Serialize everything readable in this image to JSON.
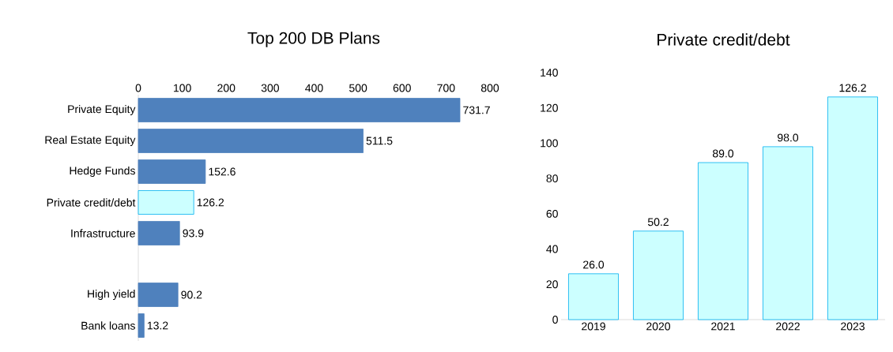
{
  "chart_data": [
    {
      "type": "bar",
      "orientation": "horizontal",
      "title": "Top 200 DB Plans",
      "categories": [
        "Private Equity",
        "Real Estate Equity",
        "Hedge Funds",
        "Private credit/debt",
        "Infrastructure",
        null,
        "High yield",
        "Bank loans"
      ],
      "values": [
        731.7,
        511.5,
        152.6,
        126.2,
        93.9,
        null,
        90.2,
        13.2
      ],
      "value_labels": [
        "731.7",
        "511.5",
        "152.6",
        "126.2",
        "93.9",
        null,
        "90.2",
        "13.2"
      ],
      "colors": [
        "#4f81bd",
        "#4f81bd",
        "#4f81bd",
        "#ccffff",
        "#4f81bd",
        "#4f81bd",
        "#4f81bd",
        "#4f81bd"
      ],
      "xlim": [
        0,
        800
      ],
      "xticks": [
        0,
        100,
        200,
        300,
        400,
        500,
        600,
        700,
        800
      ]
    },
    {
      "type": "bar",
      "title": "Private credit/debt",
      "categories": [
        "2019",
        "2020",
        "2021",
        "2022",
        "2023"
      ],
      "values": [
        26.0,
        50.2,
        89.0,
        98.0,
        126.2
      ],
      "value_labels": [
        "26.0",
        "50.2",
        "89.0",
        "98.0",
        "126.2"
      ],
      "color": "#ccffff",
      "ylim": [
        0,
        140
      ],
      "yticks": [
        0,
        20,
        40,
        60,
        80,
        100,
        120,
        140
      ]
    }
  ]
}
